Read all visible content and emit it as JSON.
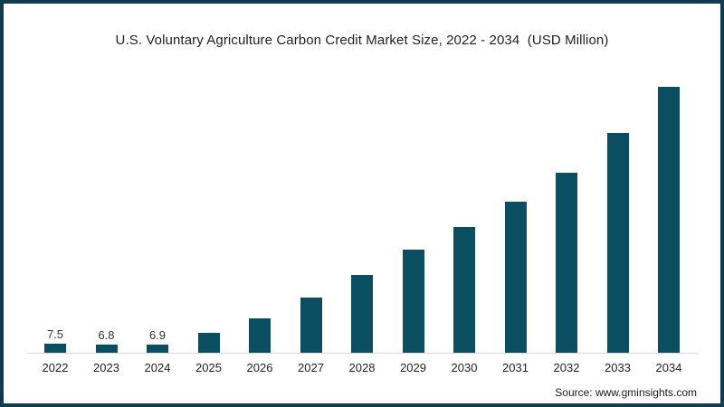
{
  "header": {
    "title": "U.S. Voluntary Agriculture Carbon Credit Market Size, 2022 - 2034  (USD Million)"
  },
  "footer": {
    "source": "Source: www.gminsights.com"
  },
  "colors": {
    "bar": "#0b4d61",
    "frame_border": "#113c4f",
    "axis_line": "#d9d9d9",
    "title_text": "#1f1f1f",
    "label_text": "#333333"
  },
  "chart_data": {
    "type": "bar",
    "title": "U.S. Voluntary Agriculture Carbon Credit Market Size, 2022 - 2034  (USD Million)",
    "categories": [
      "2022",
      "2023",
      "2024",
      "2025",
      "2026",
      "2027",
      "2028",
      "2029",
      "2030",
      "2031",
      "2032",
      "2033",
      "2034"
    ],
    "values": [
      7.5,
      6.8,
      6.9,
      16,
      28,
      45,
      63,
      84,
      102,
      123,
      146,
      179,
      216
    ],
    "value_labels": [
      "7.5",
      "6.8",
      "6.9",
      "",
      "",
      "",
      "",
      "",
      "",
      "",
      "",
      "",
      ""
    ],
    "unit": "USD Million",
    "xlabel": "",
    "ylabel": "USD Million",
    "ylim": [
      0,
      230
    ],
    "grid": false,
    "legend": false
  }
}
